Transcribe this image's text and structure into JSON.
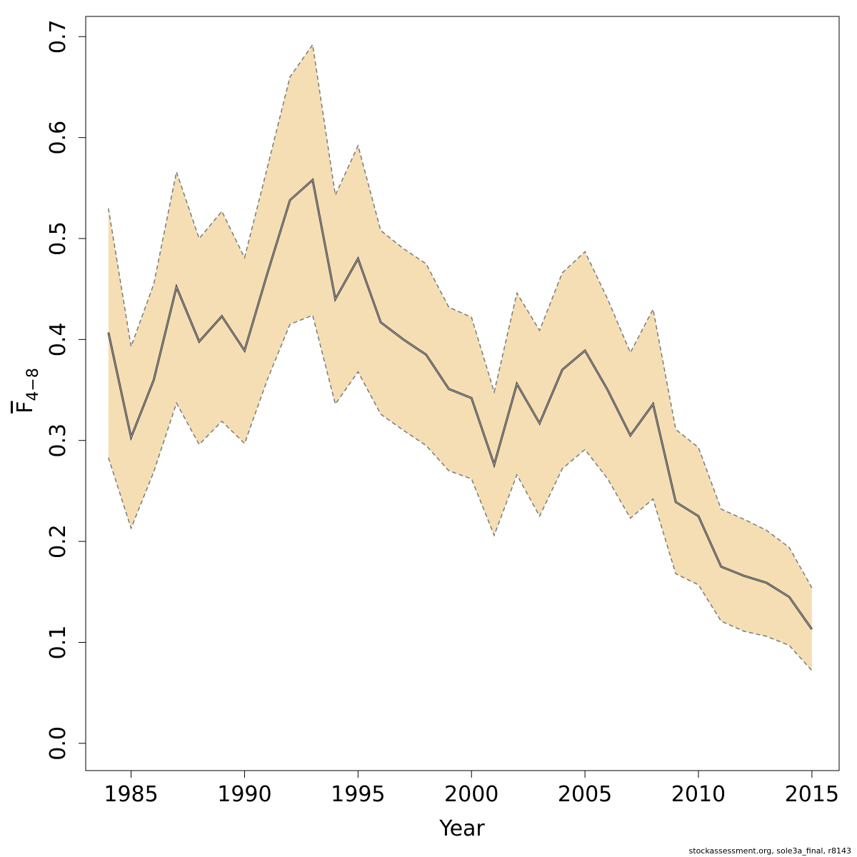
{
  "chart_data": {
    "type": "area",
    "title": "",
    "xlabel": "Year",
    "ylabel_main": "F",
    "ylabel_sub": "4−8",
    "xlim": [
      1983,
      2016.2
    ],
    "ylim": [
      -0.027,
      0.72
    ],
    "x_ticks": [
      1985,
      1990,
      1995,
      2000,
      2005,
      2010,
      2015
    ],
    "y_ticks": [
      0.0,
      0.1,
      0.2,
      0.3,
      0.4,
      0.5,
      0.6,
      0.7
    ],
    "y_tick_labels": [
      "0.0",
      "0.1",
      "0.2",
      "0.3",
      "0.4",
      "0.5",
      "0.6",
      "0.7"
    ],
    "x": [
      1984,
      1985,
      1986,
      1987,
      1988,
      1989,
      1990,
      1991,
      1992,
      1993,
      1994,
      1995,
      1996,
      1997,
      1998,
      1999,
      2000,
      2001,
      2002,
      2003,
      2004,
      2005,
      2006,
      2007,
      2008,
      2009,
      2010,
      2011,
      2012,
      2013,
      2014,
      2015
    ],
    "series": [
      {
        "role": "estimate",
        "values": [
          0.407,
          0.303,
          0.36,
          0.452,
          0.398,
          0.423,
          0.389,
          0.465,
          0.538,
          0.558,
          0.44,
          0.48,
          0.417,
          0.4,
          0.385,
          0.351,
          0.342,
          0.276,
          0.356,
          0.317,
          0.37,
          0.389,
          0.35,
          0.305,
          0.336,
          0.239,
          0.225,
          0.175,
          0.166,
          0.159,
          0.145,
          0.113
        ]
      },
      {
        "role": "upper",
        "values": [
          0.53,
          0.393,
          0.455,
          0.566,
          0.5,
          0.527,
          0.481,
          0.57,
          0.66,
          0.692,
          0.543,
          0.592,
          0.508,
          0.49,
          0.475,
          0.432,
          0.422,
          0.348,
          0.446,
          0.409,
          0.466,
          0.487,
          0.44,
          0.387,
          0.43,
          0.311,
          0.293,
          0.232,
          0.222,
          0.211,
          0.194,
          0.154
        ]
      },
      {
        "role": "lower",
        "values": [
          0.283,
          0.213,
          0.269,
          0.337,
          0.296,
          0.319,
          0.297,
          0.36,
          0.415,
          0.424,
          0.336,
          0.368,
          0.326,
          0.31,
          0.295,
          0.27,
          0.262,
          0.206,
          0.266,
          0.225,
          0.272,
          0.291,
          0.262,
          0.223,
          0.242,
          0.168,
          0.157,
          0.121,
          0.111,
          0.106,
          0.097,
          0.072
        ]
      }
    ],
    "colors": {
      "band_fill": "#f5deb3",
      "band_border": "#7a7a7a",
      "estimate_line": "#444444",
      "axis": "#000000"
    },
    "grid": false,
    "legend": "none"
  },
  "footer": {
    "note": "stockassessment.org, sole3a_final, r8143"
  }
}
